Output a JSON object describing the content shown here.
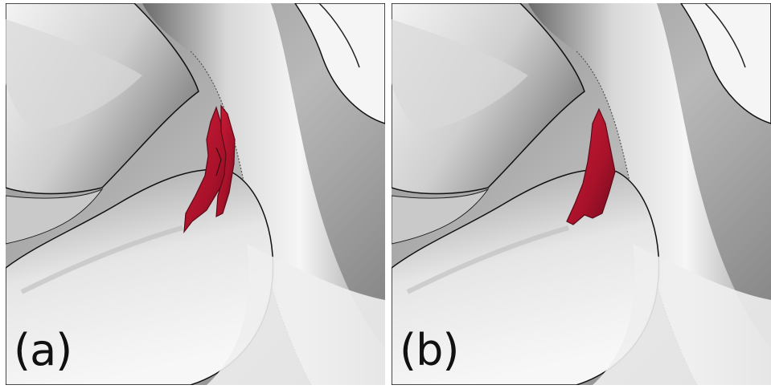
{
  "figure": {
    "panels": [
      {
        "id": "a",
        "label": "(a)"
      },
      {
        "id": "b",
        "label": "(b)"
      }
    ]
  },
  "colors": {
    "surface_light": "#f2f2f2",
    "surface_mid": "#b8b8b8",
    "surface_dark": "#5e5e5e",
    "outline": "#111111",
    "highlight_region": "#b3142a"
  }
}
